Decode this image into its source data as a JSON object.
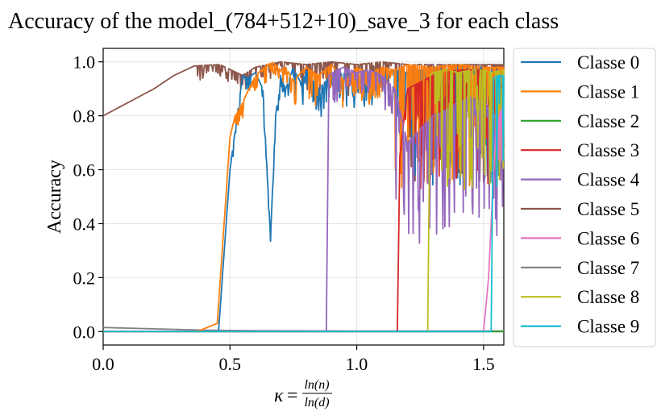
{
  "chart_data": {
    "type": "line",
    "title": "Accuracy of the model_(784+512+10)_save_3 for each class",
    "xlabel": "κ = ln(n)/ln(d)",
    "xlabel_parts": {
      "kappa": "κ",
      "eq": "=",
      "num": "ln(n)",
      "den": "ln(d)"
    },
    "ylabel": "Accuracy",
    "xlim": [
      0.0,
      1.58
    ],
    "ylim": [
      -0.05,
      1.05
    ],
    "x_ticks": [
      "0.0",
      "0.5",
      "1.0",
      "1.5"
    ],
    "x_tick_values": [
      0.0,
      0.5,
      1.0,
      1.5
    ],
    "y_ticks": [
      "0.0",
      "0.2",
      "0.4",
      "0.6",
      "0.8",
      "1.0"
    ],
    "y_tick_values": [
      0.0,
      0.2,
      0.4,
      0.6,
      0.8,
      1.0
    ],
    "grid": true,
    "legend_position": "outside-right",
    "series": [
      {
        "name": "Classe 0",
        "color": "#1f77b4",
        "x": [
          0.0,
          0.2,
          0.36,
          0.455,
          0.5,
          0.55,
          0.57,
          0.6,
          0.63,
          0.66,
          0.68,
          0.7,
          0.72,
          0.75,
          0.78,
          0.8,
          0.85,
          0.9,
          0.95,
          1.0,
          1.05,
          1.1,
          1.15,
          1.2,
          1.25,
          1.3,
          1.35,
          1.4,
          1.45,
          1.5,
          1.53,
          1.58
        ],
        "y": [
          0.0,
          0.0,
          0.0,
          0.0,
          0.6,
          0.95,
          0.94,
          0.96,
          0.9,
          0.35,
          0.8,
          0.95,
          0.9,
          0.98,
          0.92,
          0.97,
          0.9,
          0.95,
          0.96,
          0.94,
          0.96,
          0.95,
          0.97,
          0.96,
          0.97,
          0.98,
          0.97,
          0.98,
          0.97,
          0.98,
          0.97,
          0.97
        ]
      },
      {
        "name": "Classe 1",
        "color": "#ff7f0e",
        "x": [
          0.0,
          0.2,
          0.37,
          0.45,
          0.5,
          0.52,
          0.55,
          0.6,
          0.65,
          0.67,
          0.7,
          0.72,
          0.75,
          0.8,
          0.85,
          0.9,
          0.95,
          1.0,
          1.05,
          1.1,
          1.15,
          1.2,
          1.3,
          1.4,
          1.5,
          1.58
        ],
        "y": [
          0.0,
          0.0,
          0.0,
          0.03,
          0.72,
          0.8,
          0.85,
          0.95,
          0.99,
          1.0,
          0.97,
          0.98,
          0.93,
          0.98,
          0.95,
          0.99,
          0.93,
          0.98,
          0.96,
          0.98,
          0.97,
          0.99,
          0.98,
          0.99,
          0.98,
          0.98
        ]
      },
      {
        "name": "Classe 2",
        "color": "#2ca02c",
        "x": [
          0.0,
          0.5,
          1.0,
          1.58
        ],
        "y": [
          0.0,
          0.0,
          0.0,
          0.0
        ]
      },
      {
        "name": "Classe 3",
        "color": "#d62728",
        "x": [
          0.0,
          0.5,
          1.0,
          1.16,
          1.17,
          1.2,
          1.3,
          1.4,
          1.5,
          1.58
        ],
        "y": [
          0.0,
          0.0,
          0.0,
          0.0,
          0.65,
          0.9,
          0.95,
          0.97,
          0.97,
          0.9
        ]
      },
      {
        "name": "Classe 4",
        "color": "#9467bd",
        "x": [
          0.0,
          0.5,
          0.88,
          0.89,
          0.92,
          0.95,
          1.0,
          1.05,
          1.1,
          1.15,
          1.2,
          1.25,
          1.3,
          1.35,
          1.4,
          1.45,
          1.5,
          1.55,
          1.58
        ],
        "y": [
          0.0,
          0.0,
          0.0,
          0.95,
          0.97,
          0.98,
          0.96,
          0.97,
          0.95,
          0.9,
          0.7,
          0.75,
          0.8,
          0.82,
          0.85,
          0.87,
          0.85,
          0.8,
          0.78
        ]
      },
      {
        "name": "Classe 5",
        "color": "#8c564b",
        "x": [
          0.0,
          0.1,
          0.2,
          0.28,
          0.36,
          0.46,
          0.55,
          0.6,
          0.65,
          0.7,
          0.8,
          0.9,
          1.0,
          1.1,
          1.2,
          1.3,
          1.4,
          1.5,
          1.58
        ],
        "y": [
          0.8,
          0.85,
          0.9,
          0.95,
          0.985,
          0.99,
          0.95,
          0.98,
          0.99,
          1.0,
          0.99,
          1.0,
          0.99,
          1.0,
          0.99,
          0.99,
          0.99,
          0.99,
          0.99
        ]
      },
      {
        "name": "Classe 6",
        "color": "#e377c2",
        "x": [
          0.0,
          0.5,
          1.0,
          1.5,
          1.52,
          1.54,
          1.55,
          1.56,
          1.58
        ],
        "y": [
          0.0,
          0.0,
          0.0,
          0.0,
          0.2,
          0.6,
          0.75,
          0.8,
          0.85
        ]
      },
      {
        "name": "Classe 7",
        "color": "#7f7f7f",
        "x": [
          0.0,
          0.2,
          0.4,
          0.6,
          1.0,
          1.58
        ],
        "y": [
          0.015,
          0.01,
          0.005,
          0.003,
          0.002,
          0.002
        ]
      },
      {
        "name": "Classe 8",
        "color": "#bcbd22",
        "x": [
          0.0,
          0.5,
          1.0,
          1.28,
          1.29,
          1.3,
          1.35,
          1.4,
          1.45,
          1.5,
          1.53,
          1.58
        ],
        "y": [
          0.0,
          0.0,
          0.0,
          0.0,
          0.95,
          0.96,
          0.97,
          0.96,
          0.97,
          0.97,
          0.96,
          0.97
        ]
      },
      {
        "name": "Classe 9",
        "color": "#17becf",
        "x": [
          0.0,
          0.5,
          1.0,
          1.5,
          1.53,
          1.54,
          1.56,
          1.58
        ],
        "y": [
          0.0,
          0.0,
          0.0,
          0.0,
          0.0,
          0.94,
          0.95,
          0.95
        ]
      }
    ]
  }
}
